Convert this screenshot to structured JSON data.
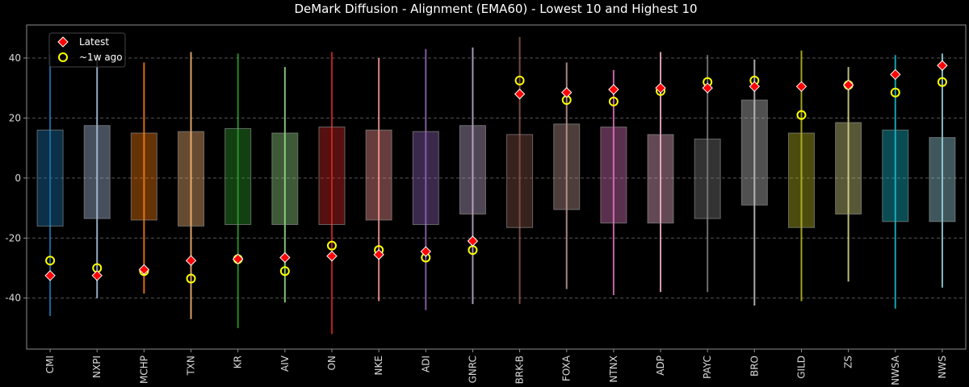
{
  "chart_data": {
    "type": "range-bar",
    "title": "DeMark Diffusion - Alignment (EMA60) - Lowest 10 and Highest 10",
    "xlabel": "",
    "ylabel": "",
    "ylim": [
      -57,
      51
    ],
    "yticks": [
      -40,
      -20,
      0,
      20,
      40
    ],
    "grid": true,
    "legend_position": "top-left",
    "legend": [
      {
        "name": "Latest",
        "marker": "red-diamond"
      },
      {
        "name": "~1w ago",
        "marker": "yellow-circle"
      }
    ],
    "colors": {
      "background": "#000000",
      "axes": "#8c8c8c",
      "grid": "#555555",
      "latest_fill": "#ff0000",
      "latest_edge": "#ffffff",
      "week_ago_edge": "#ffff00"
    },
    "categories": [
      "CMI",
      "NXPI",
      "MCHP",
      "TXN",
      "KR",
      "AIV",
      "ON",
      "NKE",
      "ADI",
      "GNRC",
      "BRK-B",
      "FOXA",
      "NTNX",
      "ADP",
      "PAYC",
      "BRO",
      "GILD",
      "ZS",
      "NWSA",
      "NWS"
    ],
    "series_colors": [
      "#1f77b4",
      "#aec7e8",
      "#ff7f0e",
      "#ffbb78",
      "#2ca02c",
      "#98df8a",
      "#d62728",
      "#ff9896",
      "#9467bd",
      "#c5b0d5",
      "#8c564b",
      "#c49c94",
      "#e377c2",
      "#f7b6d2",
      "#7f7f7f",
      "#c7c7c7",
      "#bcbd22",
      "#dbdb8d",
      "#17becf",
      "#9edae5"
    ],
    "whisker_low": [
      -46,
      -40,
      -38.5,
      -47,
      -50,
      -41.5,
      -52,
      -41,
      -44,
      -42,
      -42,
      -37,
      -39,
      -38,
      -38,
      -42.5,
      -41,
      -34.5,
      -43.5,
      -36.5
    ],
    "whisker_high": [
      41,
      41.5,
      38.5,
      42,
      41.5,
      37,
      42,
      40,
      43,
      43.5,
      47,
      38.5,
      36,
      42,
      41,
      39.5,
      42.5,
      37,
      41,
      41.5
    ],
    "box_low": [
      -16,
      -13.5,
      -14,
      -16,
      -15.5,
      -15.5,
      -15.5,
      -14,
      -15.5,
      -12,
      -16.5,
      -10.5,
      -15,
      -15,
      -13.5,
      -9,
      -16.5,
      -12,
      -14.5,
      -14.5
    ],
    "box_high": [
      16,
      17.5,
      15,
      15.5,
      16.5,
      15,
      17,
      16,
      15.5,
      17.5,
      14.5,
      18,
      17,
      14.5,
      13,
      26,
      15,
      18.5,
      16,
      13.5
    ],
    "latest": [
      -32.5,
      -32.5,
      -30.5,
      -27.5,
      -27,
      -26.5,
      -26,
      -25.5,
      -24.5,
      -21,
      28,
      28.5,
      29.5,
      30,
      30,
      30.5,
      30.5,
      31,
      34.5,
      37.5
    ],
    "week_ago": [
      -27.5,
      -30,
      -31,
      -33.5,
      -27,
      -31,
      -22.5,
      -24,
      -26.5,
      -24,
      32.5,
      26,
      25.5,
      29,
      32,
      32.5,
      21,
      31,
      28.5,
      32
    ]
  }
}
